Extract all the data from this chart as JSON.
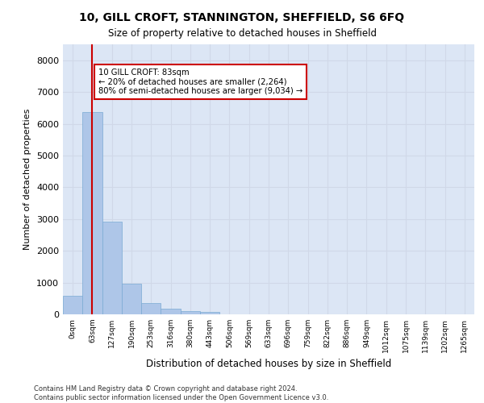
{
  "title": "10, GILL CROFT, STANNINGTON, SHEFFIELD, S6 6FQ",
  "subtitle": "Size of property relative to detached houses in Sheffield",
  "xlabel": "Distribution of detached houses by size in Sheffield",
  "ylabel": "Number of detached properties",
  "bar_categories": [
    "0sqm",
    "63sqm",
    "127sqm",
    "190sqm",
    "253sqm",
    "316sqm",
    "380sqm",
    "443sqm",
    "506sqm",
    "569sqm",
    "633sqm",
    "696sqm",
    "759sqm",
    "822sqm",
    "886sqm",
    "949sqm",
    "1012sqm",
    "1075sqm",
    "1139sqm",
    "1202sqm",
    "1265sqm"
  ],
  "bar_values": [
    580,
    6380,
    2920,
    960,
    360,
    165,
    110,
    75,
    0,
    0,
    0,
    0,
    0,
    0,
    0,
    0,
    0,
    0,
    0,
    0,
    0
  ],
  "bar_color": "#aec6e8",
  "bar_edge_color": "#7aaad4",
  "property_line_bin": 1,
  "vline_color": "#cc0000",
  "annotation_text": "10 GILL CROFT: 83sqm\n← 20% of detached houses are smaller (2,264)\n80% of semi-detached houses are larger (9,034) →",
  "annotation_box_color": "#cc0000",
  "annotation_bg": "#ffffff",
  "ylim": [
    0,
    8500
  ],
  "yticks": [
    0,
    1000,
    2000,
    3000,
    4000,
    5000,
    6000,
    7000,
    8000
  ],
  "grid_color": "#d0d8e8",
  "background_color": "#dce6f5",
  "footer_line1": "Contains HM Land Registry data © Crown copyright and database right 2024.",
  "footer_line2": "Contains public sector information licensed under the Open Government Licence v3.0."
}
